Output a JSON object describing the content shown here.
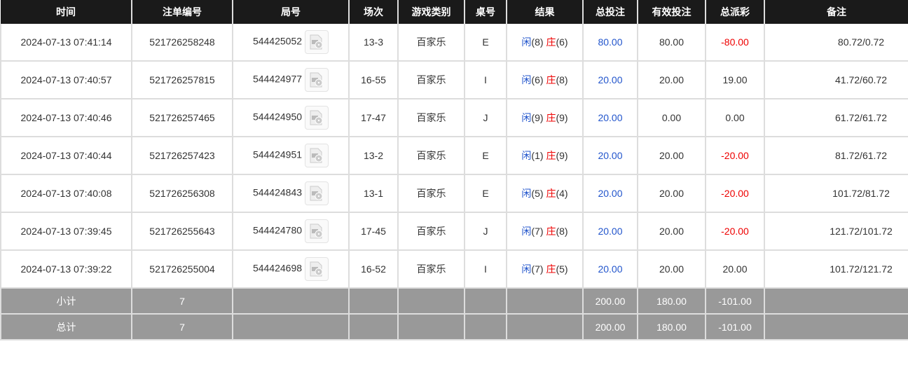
{
  "headers": [
    "时间",
    "注单编号",
    "局号",
    "场次",
    "游戏类别",
    "桌号",
    "结果",
    "总投注",
    "有效投注",
    "总派彩",
    "备注"
  ],
  "result_labels": {
    "player": "闲",
    "banker": "庄"
  },
  "colors": {
    "header_bg": "#1a1a1a",
    "summary_bg": "#999999",
    "blue": "#2255cc",
    "red": "#ee0000"
  },
  "rows": [
    {
      "time": "2024-07-13 07:41:14",
      "bet_id": "521726258248",
      "round": "544425052",
      "shoe": "13-3",
      "game": "百家乐",
      "table": "E",
      "player": "(8)",
      "banker": "(6)",
      "total_bet": "80.00",
      "valid_bet": "80.00",
      "payout": "-80.00",
      "remark": "80.72/0.72"
    },
    {
      "time": "2024-07-13 07:40:57",
      "bet_id": "521726257815",
      "round": "544424977",
      "shoe": "16-55",
      "game": "百家乐",
      "table": "I",
      "player": "(6)",
      "banker": "(8)",
      "total_bet": "20.00",
      "valid_bet": "20.00",
      "payout": "19.00",
      "remark": "41.72/60.72"
    },
    {
      "time": "2024-07-13 07:40:46",
      "bet_id": "521726257465",
      "round": "544424950",
      "shoe": "17-47",
      "game": "百家乐",
      "table": "J",
      "player": "(9)",
      "banker": "(9)",
      "total_bet": "20.00",
      "valid_bet": "0.00",
      "payout": "0.00",
      "remark": "61.72/61.72"
    },
    {
      "time": "2024-07-13 07:40:44",
      "bet_id": "521726257423",
      "round": "544424951",
      "shoe": "13-2",
      "game": "百家乐",
      "table": "E",
      "player": "(1)",
      "banker": "(9)",
      "total_bet": "20.00",
      "valid_bet": "20.00",
      "payout": "-20.00",
      "remark": "81.72/61.72"
    },
    {
      "time": "2024-07-13 07:40:08",
      "bet_id": "521726256308",
      "round": "544424843",
      "shoe": "13-1",
      "game": "百家乐",
      "table": "E",
      "player": "(5)",
      "banker": "(4)",
      "total_bet": "20.00",
      "valid_bet": "20.00",
      "payout": "-20.00",
      "remark": "101.72/81.72"
    },
    {
      "time": "2024-07-13 07:39:45",
      "bet_id": "521726255643",
      "round": "544424780",
      "shoe": "17-45",
      "game": "百家乐",
      "table": "J",
      "player": "(7)",
      "banker": "(8)",
      "total_bet": "20.00",
      "valid_bet": "20.00",
      "payout": "-20.00",
      "remark": "121.72/101.72"
    },
    {
      "time": "2024-07-13 07:39:22",
      "bet_id": "521726255004",
      "round": "544424698",
      "shoe": "16-52",
      "game": "百家乐",
      "table": "I",
      "player": "(7)",
      "banker": "(5)",
      "total_bet": "20.00",
      "valid_bet": "20.00",
      "payout": "20.00",
      "remark": "101.72/121.72"
    }
  ],
  "summary": [
    {
      "label": "小计",
      "count": "7",
      "total_bet": "200.00",
      "valid_bet": "180.00",
      "payout": "-101.00"
    },
    {
      "label": "总计",
      "count": "7",
      "total_bet": "200.00",
      "valid_bet": "180.00",
      "payout": "-101.00"
    }
  ]
}
